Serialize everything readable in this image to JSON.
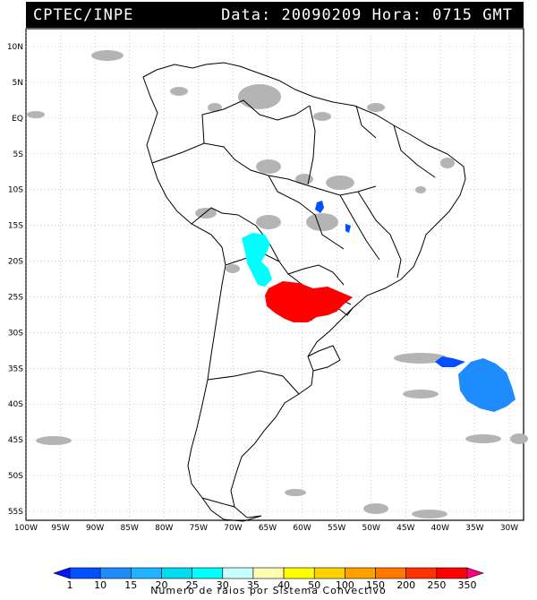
{
  "header": {
    "source": "CPTEC/INPE",
    "date_label": "Data:",
    "date_value": "20090209",
    "time_label": "Hora:",
    "time_value": "0715",
    "time_zone": "GMT"
  },
  "map": {
    "lat_labels": [
      "10N",
      "5N",
      "EQ",
      "5S",
      "10S",
      "15S",
      "20S",
      "25S",
      "30S",
      "35S",
      "40S",
      "45S",
      "50S",
      "55S"
    ],
    "lon_labels": [
      "100W",
      "95W",
      "90W",
      "85W",
      "80W",
      "75W",
      "70W",
      "65W",
      "60W",
      "55W",
      "50W",
      "45W",
      "40W",
      "35W",
      "30W"
    ],
    "background": "#ffffff",
    "coast_color": "#000000",
    "cloud_color": "#b4b4b4"
  },
  "legend": {
    "values": [
      "1",
      "10",
      "15",
      "20",
      "25",
      "30",
      "35",
      "40",
      "50",
      "100",
      "150",
      "200",
      "250",
      "350"
    ],
    "colors": [
      "#0014ff",
      "#0050ff",
      "#1e8cff",
      "#1eb4ff",
      "#00dcf0",
      "#00ffff",
      "#c8ffff",
      "#ffffb4",
      "#ffff00",
      "#ffd200",
      "#ffa000",
      "#ff7800",
      "#ff3200",
      "#ff0000",
      "#ff0078"
    ],
    "caption": "Numero de raios por Sistema Convectivo"
  }
}
